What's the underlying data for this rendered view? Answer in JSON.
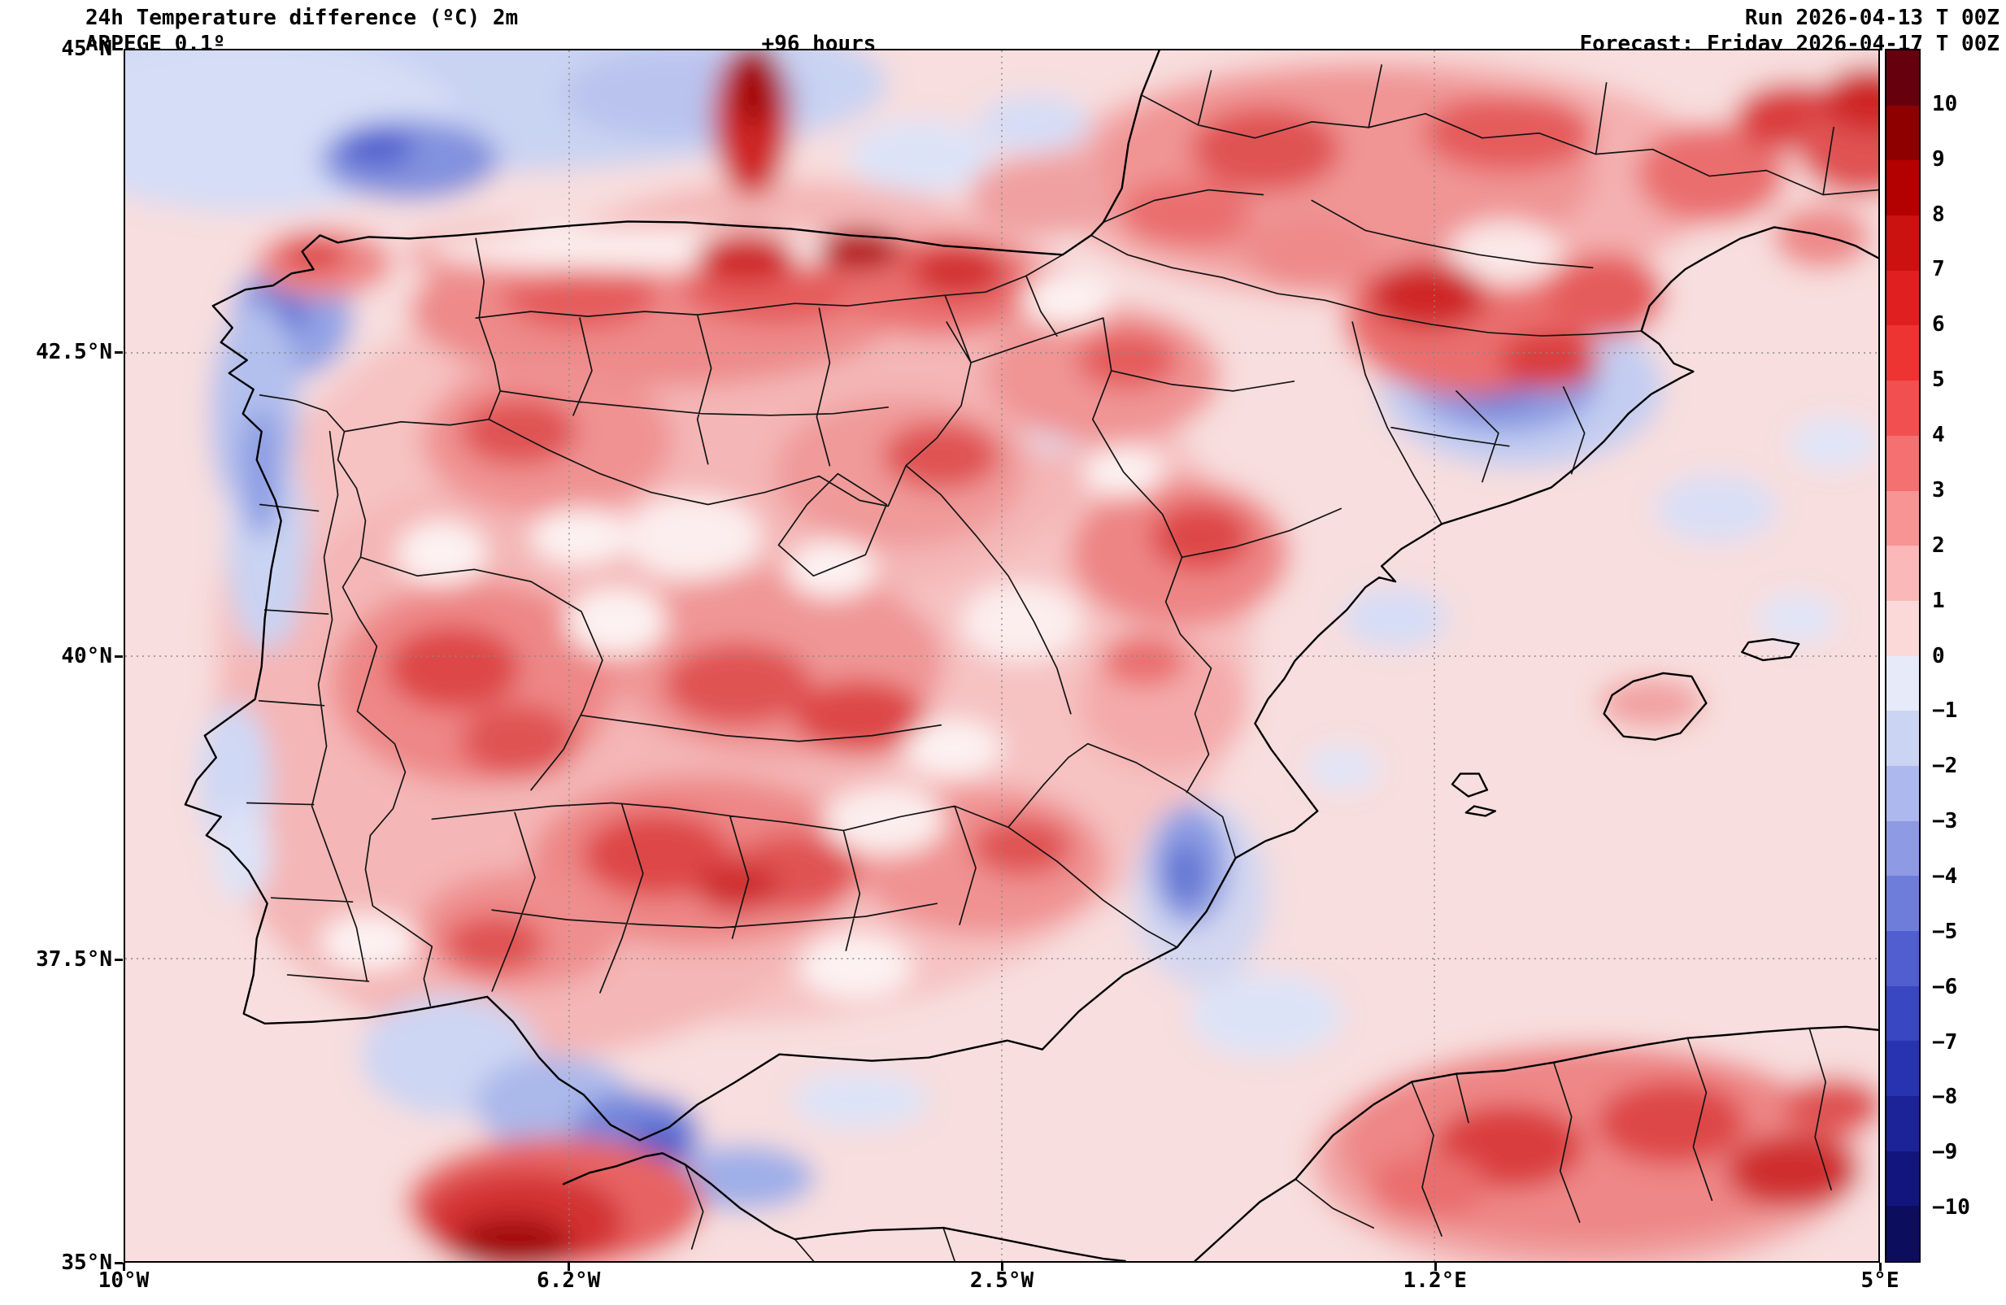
{
  "header": {
    "title": "24h Temperature difference (ºC) 2m",
    "model": "ARPEGE 0.1º",
    "lead_time": "+96 hours",
    "run": "Run 2026-04-13 T 00Z",
    "forecast": "Forecast: Friday 2026-04-17 T 00Z"
  },
  "axes": {
    "lat_ticks": [
      "45°N",
      "42.5°N",
      "40°N",
      "37.5°N",
      "35°N"
    ],
    "lon_ticks": [
      "10°W",
      "6.2°W",
      "2.5°W",
      "1.2°E",
      "5°E"
    ]
  },
  "colorbar": {
    "labels": [
      "10",
      "9",
      "8",
      "7",
      "6",
      "5",
      "4",
      "3",
      "2",
      "1",
      "0",
      "−1",
      "−2",
      "−3",
      "−4",
      "−5",
      "−6",
      "−7",
      "−8",
      "−9",
      "−10"
    ],
    "colors": [
      "#67000d",
      "#8e0000",
      "#b30000",
      "#cc1111",
      "#e02020",
      "#ee3333",
      "#f25050",
      "#f57070",
      "#f89494",
      "#fbb8b8",
      "#fcd9d9",
      "#e6eaf9",
      "#ccd4f4",
      "#adb8ee",
      "#8e9ae4",
      "#6f7dda",
      "#505ecf",
      "#3947c2",
      "#2733b0",
      "#1c2399",
      "#13157e",
      "#0c0d5c"
    ]
  },
  "chart_data": {
    "type": "heatmap",
    "title": "24h Temperature difference (ºC) 2m",
    "model": "ARPEGE 0.1º",
    "lead_time_hours": 96,
    "run": "2026-04-13 T 00Z",
    "forecast_valid": "Friday 2026-04-17 T 00Z",
    "units": "°C",
    "x_axis": {
      "ticks": [
        "10°W",
        "6.2°W",
        "2.5°W",
        "1.2°E",
        "5°E"
      ],
      "range_deg_lon": [
        -10,
        5
      ]
    },
    "y_axis": {
      "ticks": [
        "45°N",
        "42.5°N",
        "40°N",
        "37.5°N",
        "35°N"
      ],
      "range_deg_lat": [
        35,
        45
      ]
    },
    "colorbar_levels": [
      10,
      9,
      8,
      7,
      6,
      5,
      4,
      3,
      2,
      1,
      0,
      -1,
      -2,
      -3,
      -4,
      -5,
      -6,
      -7,
      -8,
      -9,
      -10
    ],
    "grid": true,
    "legend_position": "right",
    "field_summary": "Mostly +1 to +5 °C warming over inland Iberia, northern meseta, Ebro valley, Catalonia, southern France and NW Africa; locally −1 to −5 °C cooling along the Galician/Portuguese coasts, Bay of Biscay, Strait of Gibraltar, Valencia coast and parts of the western Mediterranean."
  }
}
